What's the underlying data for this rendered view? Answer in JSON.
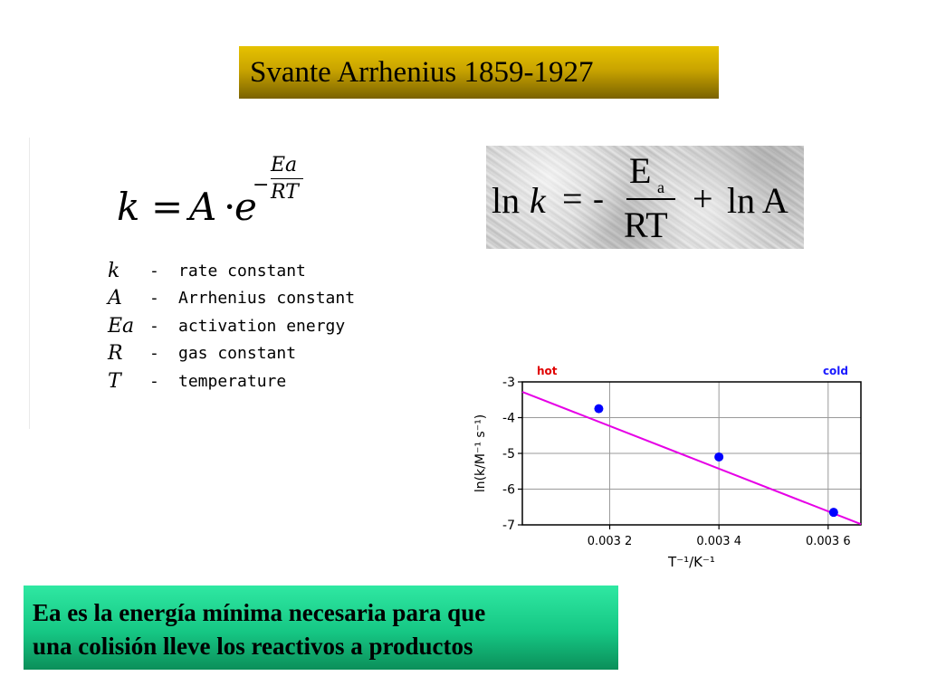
{
  "title": "Svante Arrhenius 1859-1927",
  "arrhenius_equation": {
    "k": "k",
    "equals": "=",
    "A": "A",
    "dot": "·",
    "e": "e",
    "exp_sign": "−",
    "exp_numerator": "Ea",
    "exp_denominator": "RT"
  },
  "legend": [
    {
      "symbol": "k",
      "dash": "-",
      "description": "rate constant"
    },
    {
      "symbol": "A",
      "dash": "-",
      "description": "Arrhenius constant"
    },
    {
      "symbol": "Ea",
      "dash": "-",
      "description": "activation energy"
    },
    {
      "symbol": "R",
      "dash": "-",
      "description": "gas constant"
    },
    {
      "symbol": "T",
      "dash": "-",
      "description": "temperature"
    }
  ],
  "linear_equation": {
    "ln_left": "ln",
    "k": "k",
    "equals": "=",
    "neg": "-",
    "numerator": "E",
    "numerator_sub": "a",
    "denominator": "RT",
    "plus": "+",
    "ln_right": "ln A"
  },
  "chart_data": {
    "type": "scatter",
    "title": "",
    "xlabel": "T⁻¹/K⁻¹",
    "ylabel": "ln(k/M⁻¹ s⁻¹)",
    "xlim": [
      0.00304,
      0.00366
    ],
    "ylim": [
      -7,
      -3
    ],
    "xticks": [
      0.0032,
      0.0034,
      0.0036
    ],
    "xtick_labels": [
      "0.003 2",
      "0.003 4",
      "0.003 6"
    ],
    "yticks": [
      -3,
      -4,
      -5,
      -6,
      -7
    ],
    "ytick_labels": [
      "-3",
      "-4",
      "-5",
      "-6",
      "-7"
    ],
    "grid": true,
    "annotations": [
      {
        "text": "hot",
        "position": "top-left",
        "color": "#e00000"
      },
      {
        "text": "cold",
        "position": "top-right",
        "color": "#1a1aff"
      }
    ],
    "series": [
      {
        "points": [
          [
            0.00318,
            -3.75
          ],
          [
            0.0034,
            -5.1
          ],
          [
            0.00361,
            -6.65
          ]
        ],
        "color": "#0000ff"
      }
    ],
    "fit_line": {
      "x": [
        0.00304,
        0.00366
      ],
      "y": [
        -3.28,
        -6.98
      ],
      "color": "#e600e6"
    }
  },
  "note": {
    "line1": "Ea es la energía mínima necesaria para que",
    "line2": "una colisión lleve los reactivos a productos"
  }
}
